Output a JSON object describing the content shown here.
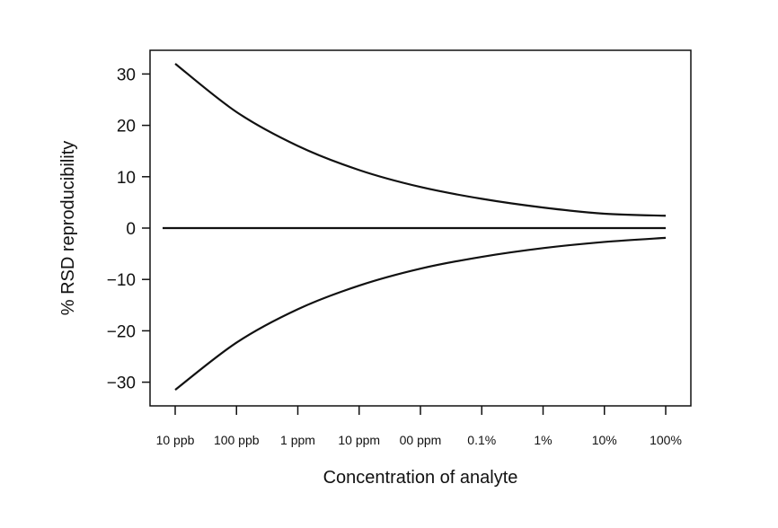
{
  "chart_data": {
    "type": "line",
    "title": "",
    "xlabel": "Concentration of analyte",
    "ylabel": "% RSD reproducibility",
    "categories": [
      "10 ppb",
      "100 ppb",
      "1 ppm",
      "10 ppm",
      "00 ppm",
      "0.1%",
      "1%",
      "10%",
      "100%"
    ],
    "yticks": [
      30,
      20,
      10,
      0,
      -10,
      -20,
      -30
    ],
    "ytick_labels": [
      "30",
      "20",
      "10",
      "0",
      "−10",
      "−20",
      "−30"
    ],
    "ylim": [
      -35,
      35
    ],
    "grid": false,
    "legend": "none",
    "series": [
      {
        "values": [
          32,
          22.6,
          16,
          11.3,
          8,
          5.7,
          4,
          2.8,
          2.4
        ]
      },
      {
        "values": [
          0,
          0,
          0,
          0,
          0,
          0,
          0,
          0,
          0
        ]
      },
      {
        "values": [
          -31.5,
          -22.3,
          -15.8,
          -11.2,
          -7.9,
          -5.6,
          -3.9,
          -2.7,
          -1.9
        ]
      }
    ],
    "colors": {
      "line": "#111111",
      "axis": "#111111"
    }
  }
}
